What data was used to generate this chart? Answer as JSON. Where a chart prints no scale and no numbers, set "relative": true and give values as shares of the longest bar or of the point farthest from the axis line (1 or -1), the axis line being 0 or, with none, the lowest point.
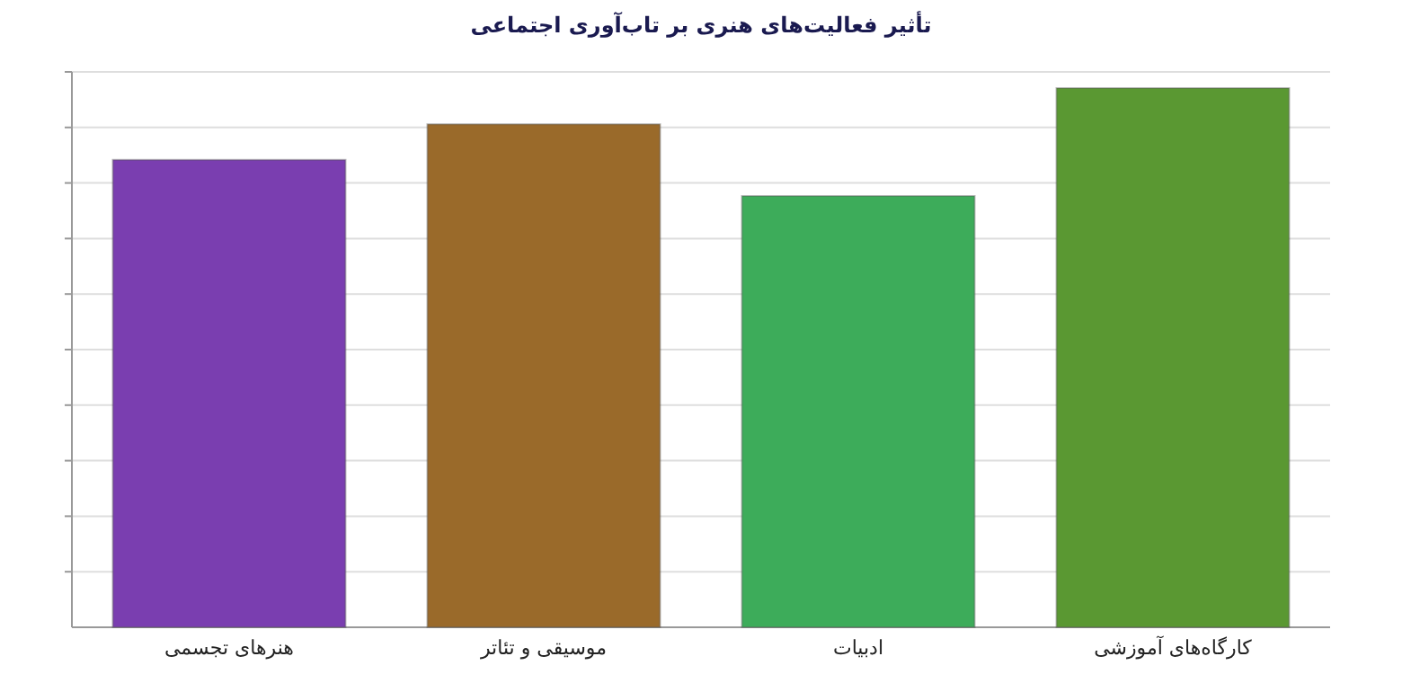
{
  "chart_data": {
    "type": "bar",
    "title": "تأثیر فعالیت‌های هنری بر تاب‌آوری  اجتماعی",
    "categories": [
      "هنرهای تجسمی",
      "موسیقی و تئاتر",
      "ادبیات",
      "کارگاه‌های آموزشی"
    ],
    "values": [
      0.867,
      0.933,
      0.8,
      1
    ],
    "colors": [
      "#7a3eb0",
      "#9a6a2a",
      "#3dac5a",
      "#5a9832"
    ],
    "relative": true,
    "grid": "y"
  }
}
